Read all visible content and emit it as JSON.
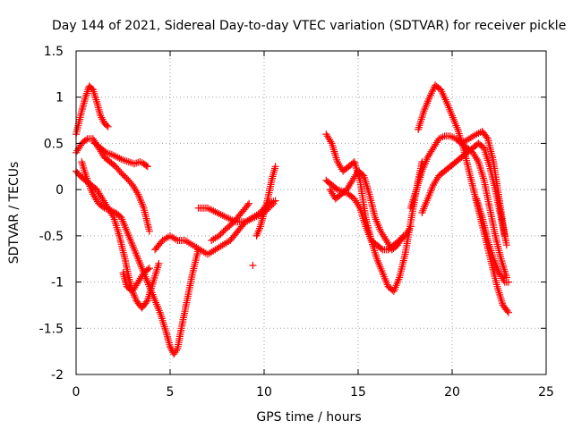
{
  "chart_data": {
    "type": "scatter",
    "title": "Day 144 of 2021, Sidereal Day-to-day VTEC variation (SDTVAR) for receiver pickle",
    "xlabel": "GPS time / hours",
    "ylabel": "SDTVAR / TECUs",
    "xlim": [
      0,
      25
    ],
    "ylim": [
      -2,
      1.5
    ],
    "x_ticks": [
      "0",
      "5",
      "10",
      "15",
      "20",
      "25"
    ],
    "y_ticks": [
      "-2",
      "-1.5",
      "-1",
      "-0.5",
      "0",
      "0.5",
      "1",
      "1.5"
    ],
    "x_tick_values": [
      0,
      5,
      10,
      15,
      20,
      25
    ],
    "y_tick_values": [
      -2,
      -1.5,
      -1,
      -0.5,
      0,
      0.5,
      1,
      1.5
    ],
    "grid": true,
    "marker": "+",
    "color": "#ff0000",
    "series": [
      {
        "x": [
          0.0,
          0.3,
          0.5,
          0.7,
          0.9,
          1.1,
          1.3,
          1.5,
          1.7
        ],
        "y": [
          0.6,
          0.85,
          1.0,
          1.12,
          1.08,
          0.95,
          0.8,
          0.72,
          0.68
        ]
      },
      {
        "x": [
          0.0,
          0.2,
          0.5,
          0.8,
          1.1,
          1.4,
          1.7,
          2.0,
          2.3,
          2.6,
          2.8,
          3.0,
          3.2,
          3.5,
          3.8,
          4.1,
          4.4
        ],
        "y": [
          0.2,
          0.15,
          0.1,
          0.05,
          0.0,
          -0.1,
          -0.2,
          -0.3,
          -0.5,
          -0.75,
          -0.95,
          -1.1,
          -1.2,
          -1.28,
          -1.2,
          -1.0,
          -0.8
        ]
      },
      {
        "x": [
          0.0,
          0.3,
          0.6,
          0.9,
          1.2,
          1.5,
          1.8,
          2.1,
          2.4,
          2.7,
          3.0,
          3.3,
          3.6,
          3.9
        ],
        "y": [
          0.4,
          0.5,
          0.55,
          0.55,
          0.45,
          0.35,
          0.3,
          0.25,
          0.18,
          0.12,
          0.05,
          -0.05,
          -0.2,
          -0.45
        ]
      },
      {
        "x": [
          0.3,
          0.6,
          0.9,
          1.2,
          1.5,
          1.8,
          2.1,
          2.4,
          2.7,
          3.0,
          3.3,
          3.6,
          3.9,
          4.2,
          4.5,
          4.8,
          5.0,
          5.2,
          5.4,
          5.6,
          5.9,
          6.2,
          6.5
        ],
        "y": [
          0.3,
          0.1,
          -0.05,
          -0.15,
          -0.2,
          -0.22,
          -0.25,
          -0.3,
          -0.45,
          -0.6,
          -0.75,
          -0.9,
          -1.05,
          -1.2,
          -1.35,
          -1.55,
          -1.7,
          -1.78,
          -1.72,
          -1.5,
          -1.2,
          -0.9,
          -0.65
        ]
      },
      {
        "x": [
          1.0,
          1.3,
          1.6,
          1.9,
          2.2,
          2.5,
          2.8,
          3.1,
          3.4,
          3.6,
          3.8
        ],
        "y": [
          0.5,
          0.45,
          0.4,
          0.38,
          0.35,
          0.32,
          0.3,
          0.28,
          0.3,
          0.28,
          0.25
        ]
      },
      {
        "x": [
          2.5,
          2.7,
          3.0,
          3.3,
          3.6,
          3.9
        ],
        "y": [
          -0.9,
          -1.05,
          -1.1,
          -1.0,
          -0.9,
          -0.85
        ]
      },
      {
        "x": [
          4.2,
          4.6,
          5.0,
          5.4,
          5.8,
          6.2,
          6.6,
          7.0,
          7.4,
          7.8,
          8.2,
          8.6,
          9.0,
          9.4,
          9.8,
          10.2,
          10.6
        ],
        "y": [
          -0.65,
          -0.55,
          -0.5,
          -0.55,
          -0.55,
          -0.6,
          -0.65,
          -0.7,
          -0.65,
          -0.6,
          -0.55,
          -0.45,
          -0.35,
          -0.3,
          -0.25,
          -0.15,
          -0.12
        ]
      },
      {
        "x": [
          6.5,
          7.0,
          7.5,
          8.0,
          8.5,
          9.0,
          9.5,
          10.0,
          10.5
        ],
        "y": [
          -0.2,
          -0.2,
          -0.25,
          -0.3,
          -0.35,
          -0.35,
          -0.3,
          -0.25,
          -0.15
        ]
      },
      {
        "x": [
          7.2,
          7.6,
          8.0,
          8.4,
          8.8,
          9.2
        ],
        "y": [
          -0.55,
          -0.5,
          -0.42,
          -0.35,
          -0.25,
          -0.15
        ]
      },
      {
        "x": [
          9.6,
          9.8,
          10.0,
          10.2,
          10.4,
          10.6
        ],
        "y": [
          -0.5,
          -0.4,
          -0.25,
          -0.1,
          0.1,
          0.25
        ]
      },
      {
        "x": [
          9.4
        ],
        "y": [
          -0.82
        ]
      },
      {
        "x": [
          13.3,
          13.6,
          13.9,
          14.2,
          14.5,
          14.8,
          15.1,
          15.4,
          15.7,
          16.0,
          16.3,
          16.6,
          16.9,
          17.2,
          17.5,
          17.8,
          18.1,
          18.4
        ],
        "y": [
          0.6,
          0.5,
          0.3,
          0.2,
          0.25,
          0.3,
          0.1,
          -0.3,
          -0.55,
          -0.75,
          -0.9,
          -1.05,
          -1.1,
          -0.95,
          -0.7,
          -0.35,
          0.0,
          0.3
        ]
      },
      {
        "x": [
          13.3,
          13.6,
          13.9,
          14.2,
          14.5,
          14.8,
          15.1,
          15.4,
          15.7,
          16.0,
          16.3,
          16.6,
          16.9,
          17.2,
          17.5,
          17.8
        ],
        "y": [
          0.1,
          0.05,
          0.0,
          -0.02,
          -0.05,
          -0.1,
          -0.2,
          -0.4,
          -0.55,
          -0.6,
          -0.65,
          -0.65,
          -0.6,
          -0.55,
          -0.5,
          -0.4
        ]
      },
      {
        "x": [
          13.5,
          13.8,
          14.1,
          14.4,
          14.7,
          15.0,
          15.3,
          15.6,
          15.9,
          16.2,
          16.5,
          16.8,
          17.1,
          17.4
        ],
        "y": [
          0.0,
          -0.1,
          -0.05,
          0.0,
          0.1,
          0.2,
          0.15,
          -0.05,
          -0.3,
          -0.45,
          -0.55,
          -0.65,
          -0.6,
          -0.5
        ]
      },
      {
        "x": [
          18.2,
          18.5,
          18.8,
          19.1,
          19.4,
          19.7,
          20.0,
          20.3,
          20.6,
          20.9,
          21.2,
          21.5,
          21.8,
          22.1,
          22.4,
          22.7,
          23.0
        ],
        "y": [
          0.65,
          0.85,
          1.0,
          1.13,
          1.08,
          0.95,
          0.8,
          0.65,
          0.45,
          0.2,
          -0.05,
          -0.3,
          -0.55,
          -0.8,
          -1.05,
          -1.25,
          -1.33
        ]
      },
      {
        "x": [
          17.8,
          18.1,
          18.4,
          18.7,
          19.0,
          19.3,
          19.6,
          19.9,
          20.2,
          20.5,
          20.8,
          21.1,
          21.4,
          21.7,
          22.0,
          22.3,
          22.6,
          22.9
        ],
        "y": [
          -0.2,
          0.0,
          0.2,
          0.35,
          0.45,
          0.55,
          0.58,
          0.58,
          0.55,
          0.5,
          0.45,
          0.4,
          0.3,
          0.1,
          -0.2,
          -0.5,
          -0.75,
          -0.95
        ]
      },
      {
        "x": [
          18.4,
          18.7,
          19.0,
          19.3,
          19.6,
          19.9,
          20.2,
          20.5,
          20.8,
          21.1,
          21.4,
          21.7,
          22.0,
          22.3,
          22.6,
          22.9
        ],
        "y": [
          -0.25,
          -0.1,
          0.05,
          0.15,
          0.2,
          0.25,
          0.3,
          0.35,
          0.4,
          0.45,
          0.5,
          0.45,
          0.25,
          0.0,
          -0.3,
          -0.6
        ]
      },
      {
        "x": [
          20.5,
          20.9,
          21.3,
          21.6,
          21.9,
          22.2,
          22.5,
          22.8
        ],
        "y": [
          0.5,
          0.55,
          0.6,
          0.63,
          0.55,
          0.3,
          -0.1,
          -0.5
        ]
      },
      {
        "x": [
          21.3,
          21.6,
          21.9,
          22.2,
          22.5,
          22.8,
          23.0
        ],
        "y": [
          -0.1,
          -0.3,
          -0.55,
          -0.75,
          -0.9,
          -1.0,
          -1.0
        ]
      }
    ]
  }
}
